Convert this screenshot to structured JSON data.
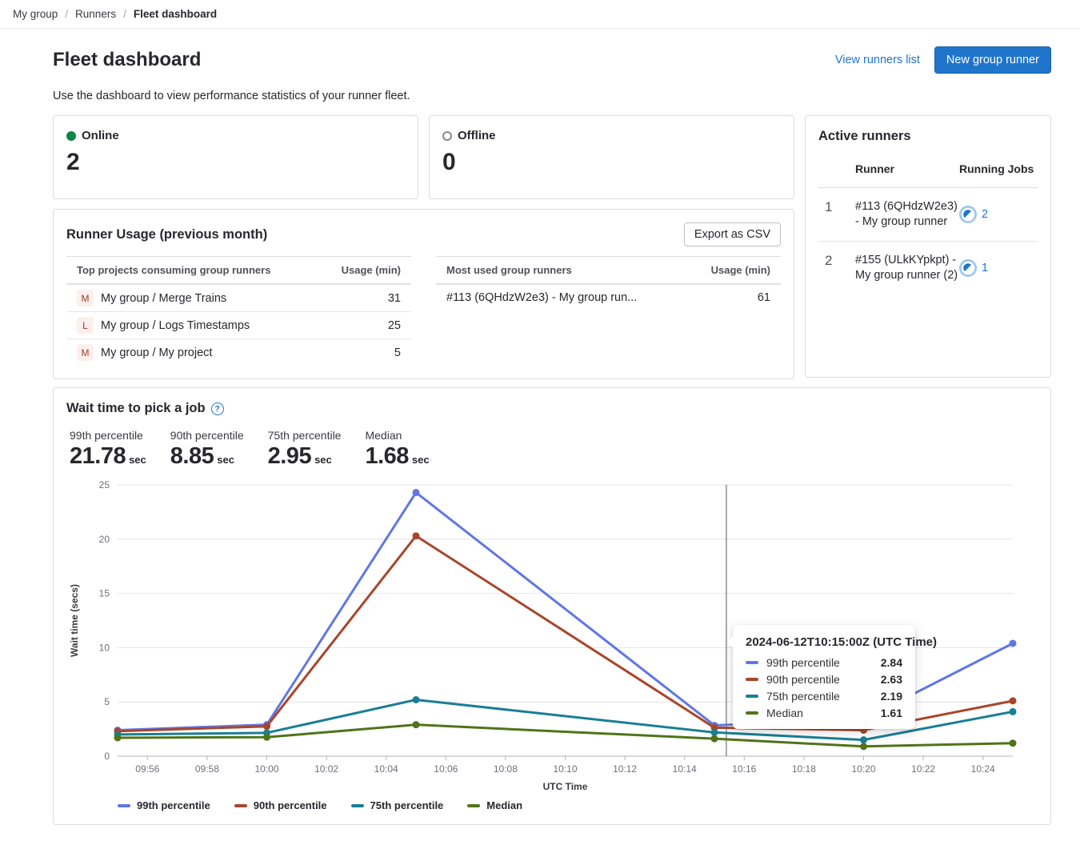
{
  "colors": {
    "accent": "#1f75cb",
    "online_green": "#108548",
    "offline_gray": "#89888d"
  },
  "icons": {
    "help": "help-question-icon",
    "online": "green-filled-dot",
    "offline": "gray-hollow-dot",
    "running_jobs": "running-status-icon"
  },
  "breadcrumb": {
    "items": [
      "My group",
      "Runners",
      "Fleet dashboard"
    ],
    "separator": "/"
  },
  "header": {
    "title": "Fleet dashboard",
    "view_runners_link": "View runners list",
    "new_runner_button": "New group runner",
    "description": "Use the dashboard to view performance statistics of your runner fleet."
  },
  "status_cards": {
    "online": {
      "label": "Online",
      "value": "2"
    },
    "offline": {
      "label": "Offline",
      "value": "0"
    }
  },
  "active_runners": {
    "title": "Active runners",
    "columns": {
      "runner": "Runner",
      "running_jobs": "Running Jobs"
    },
    "rows": [
      {
        "index": "1",
        "runner": "#113 (6QHdzW2e3) - My group runner",
        "jobs": "2"
      },
      {
        "index": "2",
        "runner": "#155 (ULkKYpkpt) - My group runner (2)",
        "jobs": "1"
      }
    ]
  },
  "runner_usage": {
    "title": "Runner Usage (previous month)",
    "export_button": "Export as CSV",
    "projects_table": {
      "col_name": "Top projects consuming group runners",
      "col_usage": "Usage (min)",
      "rows": [
        {
          "initial": "M",
          "name": "My group / Merge Trains",
          "usage": "31"
        },
        {
          "initial": "L",
          "name": "My group / Logs Timestamps",
          "usage": "25"
        },
        {
          "initial": "M",
          "name": "My group / My project",
          "usage": "5"
        }
      ]
    },
    "runners_table": {
      "col_name": "Most used group runners",
      "col_usage": "Usage (min)",
      "rows": [
        {
          "name": "#113 (6QHdzW2e3) - My group run...",
          "usage": "61"
        }
      ]
    }
  },
  "wait_chart": {
    "title": "Wait time to pick a job",
    "stats": [
      {
        "label": "99th percentile",
        "value": "21.78",
        "unit": "sec"
      },
      {
        "label": "90th percentile",
        "value": "8.85",
        "unit": "sec"
      },
      {
        "label": "75th percentile",
        "value": "2.95",
        "unit": "sec"
      },
      {
        "label": "Median",
        "value": "1.68",
        "unit": "sec"
      }
    ],
    "tooltip": {
      "title": "2024-06-12T10:15:00Z (UTC Time)",
      "rows": [
        {
          "label": "99th percentile",
          "value": "2.84"
        },
        {
          "label": "90th percentile",
          "value": "2.63"
        },
        {
          "label": "75th percentile",
          "value": "2.19"
        },
        {
          "label": "Median",
          "value": "1.61"
        }
      ]
    }
  },
  "chart_data": {
    "type": "line",
    "title": "Wait time to pick a job",
    "xlabel": "UTC Time",
    "ylabel": "Wait time (secs)",
    "x": [
      "09:55",
      "10:00",
      "10:05",
      "10:15",
      "10:20",
      "10:25"
    ],
    "x_ticks": [
      "09:56",
      "09:58",
      "10:00",
      "10:02",
      "10:04",
      "10:06",
      "10:08",
      "10:10",
      "10:12",
      "10:14",
      "10:16",
      "10:18",
      "10:20",
      "10:22",
      "10:24"
    ],
    "ylim": [
      0,
      25
    ],
    "y_ticks": [
      0,
      5,
      10,
      15,
      20,
      25
    ],
    "grid": "horizontal",
    "legend_position": "bottom",
    "crosshair_time": "10:15",
    "series": [
      {
        "name": "99th percentile",
        "color": "#6177e3",
        "values": [
          2.4,
          2.9,
          24.3,
          2.84,
          3.4,
          10.4
        ]
      },
      {
        "name": "90th percentile",
        "color": "#a8462b",
        "values": [
          2.3,
          2.75,
          20.3,
          2.63,
          2.4,
          5.1
        ]
      },
      {
        "name": "75th percentile",
        "color": "#1a7e95",
        "values": [
          2.0,
          2.15,
          5.2,
          2.19,
          1.5,
          4.1
        ]
      },
      {
        "name": "Median",
        "color": "#4f7419",
        "values": [
          1.7,
          1.75,
          2.9,
          1.61,
          0.9,
          1.2
        ]
      }
    ]
  }
}
